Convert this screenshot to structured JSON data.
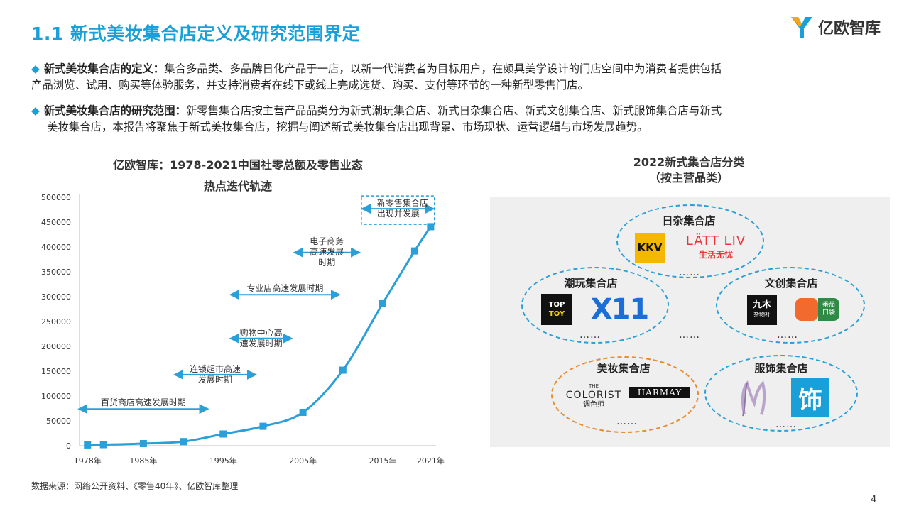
{
  "header": {
    "title": "1.1 新式美妆集合店定义及研究范围界定",
    "brand_name": "亿欧智库"
  },
  "bullets": [
    {
      "label": "新式美妆集合店的定义：",
      "line1": "集合多品类、多品牌日化产品于一店，以新一代消费者为目标用户，在颇具美学设计的门店空间中为消费者提供包括",
      "line2": "产品浏览、试用、购买等体验服务，并支持消费者在线下或线上完成选货、购买、支付等环节的一种新型零售门店。"
    },
    {
      "label": "新式美妆集合店的研究范围：",
      "line1": "新零售集合店按主营产品品类分为新式潮玩集合店、新式日杂集合店、新式文创集合店、新式服饰集合店与新式",
      "line2": "美妆集合店，本报告将聚焦于新式美妆集合店，挖掘与阐述新式美妆集合店出现背景、市场现状、运营逻辑与市场发展趋势。"
    }
  ],
  "left_chart_title_line1": "亿欧智库：1978-2021中国社零总额及零售业态",
  "left_chart_title_line2": "热点迭代轨迹",
  "chart_data": {
    "type": "line",
    "title": "亿欧智库：1978-2021中国社零总额及零售业态热点迭代轨迹",
    "x": [
      1978,
      1980,
      1985,
      1990,
      1995,
      2000,
      2005,
      2010,
      2015,
      2019,
      2021
    ],
    "y": [
      1559,
      2140,
      4305,
      8300,
      23614,
      39106,
      67177,
      152083,
      286588,
      391981,
      440823
    ],
    "x_tick_labels": [
      "1978年",
      "1985年",
      "1995年",
      "2005年",
      "2015年",
      "2021年"
    ],
    "x_tick_values": [
      1978,
      1985,
      1995,
      2005,
      2015,
      2021
    ],
    "y_ticks": [
      0,
      50000,
      100000,
      150000,
      200000,
      250000,
      300000,
      350000,
      400000,
      450000,
      500000
    ],
    "ylim": [
      0,
      500000
    ],
    "xlim": [
      1977,
      2021.5
    ],
    "color": "#2a9fd8",
    "grid": false,
    "annotations": [
      {
        "lines": [
          "百货商店高速发展时期"
        ],
        "x_start": 1977,
        "x_end": 1993,
        "y_value": 74000,
        "text_side": "above"
      },
      {
        "lines": [
          "连锁超市高速",
          "发展时期"
        ],
        "x_start": 1989,
        "x_end": 1999,
        "y_value": 143000,
        "text_side": "straddle"
      },
      {
        "lines": [
          "购物中心高",
          "速发展时期"
        ],
        "x_start": 1996,
        "x_end": 2003.5,
        "y_value": 216000,
        "text_side": "straddle"
      },
      {
        "lines": [
          "专业店高速发展时期"
        ],
        "x_start": 1996,
        "x_end": 2009.5,
        "y_value": 304000,
        "text_side": "above"
      },
      {
        "lines": [
          "电子商务",
          "高速发展",
          "时期"
        ],
        "x_start": 2004,
        "x_end": 2012,
        "y_value": 389000,
        "text_side": "straddle"
      },
      {
        "lines": [
          "新零售集合店",
          "出现并发展"
        ],
        "x_start": 2012.5,
        "x_end": 2021.3,
        "y_value": 477000,
        "text_side": "straddle",
        "boxed": true
      }
    ]
  },
  "right_panel": {
    "title_line1": "2022新式集合店分类",
    "title_line2": "（按主营品类）",
    "categories": [
      {
        "name": "日杂集合店",
        "brands": [
          "KKV",
          "LÄTT LIV",
          "生活无忧"
        ],
        "more": "……"
      },
      {
        "name": "潮玩集合店",
        "brands": [
          "TOP",
          "TOY",
          "X11"
        ],
        "more": "……"
      },
      {
        "name": "文创集合店",
        "brands": [
          "九木",
          "杂物社",
          "番茄",
          "口袋"
        ],
        "more": "……"
      },
      {
        "name": "美妆集合店",
        "brands": [
          "THE",
          "COLORIST",
          "调色师",
          "HARMAY"
        ],
        "more": "……"
      },
      {
        "name": "服饰集合店",
        "brands": [
          "饰"
        ],
        "more": "……"
      }
    ],
    "center_more": "……",
    "colors": {
      "ellipse_blue": "#2a9fd8",
      "ellipse_orange": "#e98a2b",
      "panel_bg": "#efefef",
      "kkv_yellow": "#f5b800",
      "latt_red": "#e8343a",
      "x11_blue": "#1b6dd8",
      "fashion_blue": "#1aa0d8",
      "jiumu_green": "#2f8a45",
      "tomato_orange": "#f26a2e"
    }
  },
  "footer": {
    "source": "数据来源：网络公开资料、《零售40年》、亿欧智库整理",
    "page_number": "4"
  }
}
